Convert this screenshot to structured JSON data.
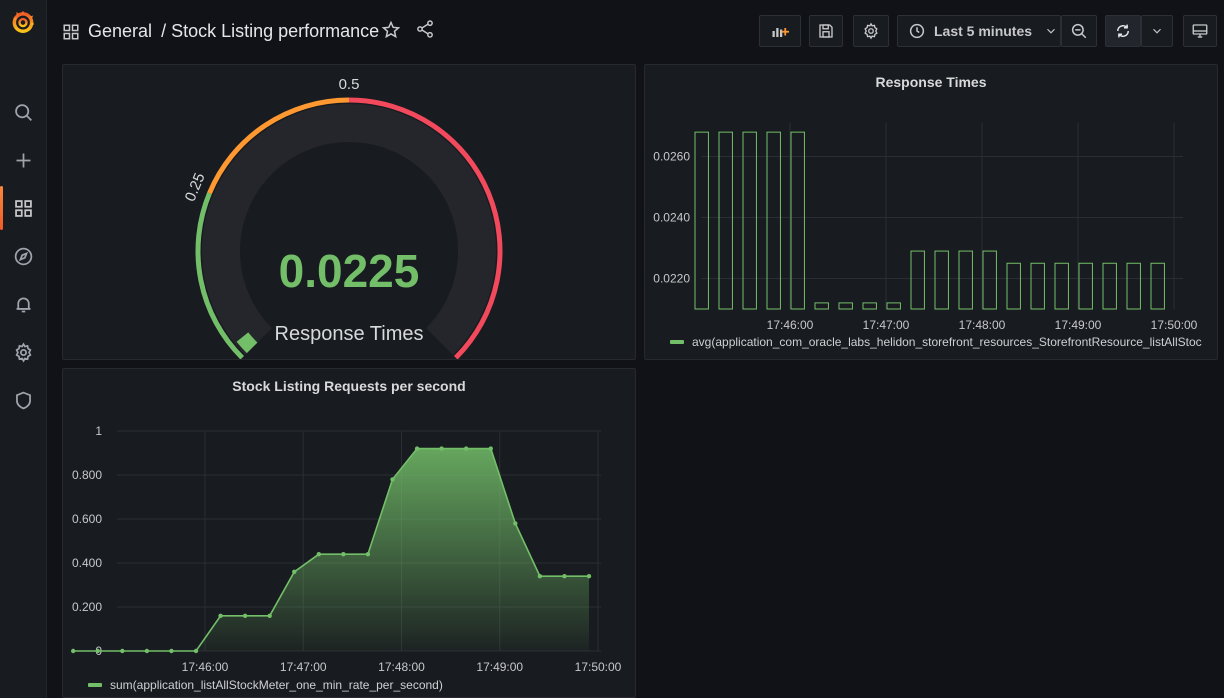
{
  "header": {
    "breadcrumb_folder": "General",
    "breadcrumb_separator": "/",
    "dashboard_title": "Stock Listing performance",
    "time_range_label": "Last 5 minutes"
  },
  "sidebar": {
    "items": [
      "search-icon",
      "plus-icon",
      "dashboards-icon",
      "explore-icon",
      "alerting-icon",
      "configuration-icon",
      "shield-icon"
    ]
  },
  "colors": {
    "accent": "#73bf69",
    "orange": "#ff9830",
    "red": "#f2495c",
    "brand": "#f05a28"
  },
  "gauge_panel": {
    "value": "0.0225",
    "title": "Response Times",
    "min_label": "0",
    "max_label": "1",
    "tick_labels": [
      "0.25",
      "0.5"
    ],
    "min": 0,
    "max": 1,
    "numeric_value": 0.0225
  },
  "response_panel": {
    "title": "Response Times",
    "legend": "avg(application_com_oracle_labs_helidon_storefront_resources_StorefrontResource_listAllStoc"
  },
  "requests_panel": {
    "title": "Stock Listing Requests per second",
    "legend": "sum(application_listAllStockMeter_one_min_rate_per_second)"
  },
  "chart_data": [
    {
      "type": "bar",
      "title": "Response Times",
      "xlabel": "",
      "ylabel": "",
      "ylim": [
        0.021,
        0.0271
      ],
      "y_ticks": [
        "0.0220",
        "0.0240",
        "0.0260"
      ],
      "y_tick_values": [
        0.022,
        0.024,
        0.026
      ],
      "x_ticks": [
        "17:46:00",
        "17:47:00",
        "17:48:00",
        "17:49:00",
        "17:50:00"
      ],
      "legend_position": "bottom-left",
      "grid": true,
      "series": [
        {
          "name": "avg(application_com_oracle_labs_helidon_storefront_resources_StorefrontResource_listAllStoc",
          "x": [
            "17:45:00",
            "17:45:15",
            "17:45:30",
            "17:45:45",
            "17:46:00",
            "17:46:15",
            "17:46:30",
            "17:46:45",
            "17:47:00",
            "17:47:15",
            "17:47:30",
            "17:47:45",
            "17:48:00",
            "17:48:15",
            "17:48:30",
            "17:48:45",
            "17:49:00",
            "17:49:15",
            "17:49:30",
            "17:49:45"
          ],
          "values": [
            0.0268,
            0.0268,
            0.0268,
            0.0268,
            0.0268,
            0.0212,
            0.0212,
            0.0212,
            0.0212,
            0.0229,
            0.0229,
            0.0229,
            0.0229,
            0.0225,
            0.0225,
            0.0225,
            0.0225,
            0.0225,
            0.0225,
            0.0225
          ]
        }
      ]
    },
    {
      "type": "area",
      "title": "Stock Listing Requests per second",
      "xlabel": "",
      "ylabel": "",
      "ylim": [
        0,
        1
      ],
      "y_ticks": [
        "0",
        "0.200",
        "0.400",
        "0.600",
        "0.800",
        "1"
      ],
      "y_tick_values": [
        0,
        0.2,
        0.4,
        0.6,
        0.8,
        1
      ],
      "x_ticks": [
        "17:46:00",
        "17:47:00",
        "17:48:00",
        "17:49:00",
        "17:50:00"
      ],
      "legend_position": "bottom-left",
      "grid": true,
      "series": [
        {
          "name": "sum(application_listAllStockMeter_one_min_rate_per_second)",
          "x": [
            "17:44:45",
            "17:45:00",
            "17:45:15",
            "17:45:30",
            "17:45:45",
            "17:46:00",
            "17:46:15",
            "17:46:30",
            "17:46:45",
            "17:47:00",
            "17:47:15",
            "17:47:30",
            "17:47:45",
            "17:48:00",
            "17:48:15",
            "17:48:30",
            "17:48:45",
            "17:49:00",
            "17:49:15",
            "17:49:30",
            "17:49:45",
            "17:50:00"
          ],
          "values": [
            0,
            0,
            0,
            0,
            0,
            0,
            0.16,
            0.16,
            0.16,
            0.36,
            0.44,
            0.44,
            0.44,
            0.78,
            0.92,
            0.92,
            0.92,
            0.92,
            0.58,
            0.34,
            0.34,
            0.34
          ]
        }
      ]
    }
  ]
}
